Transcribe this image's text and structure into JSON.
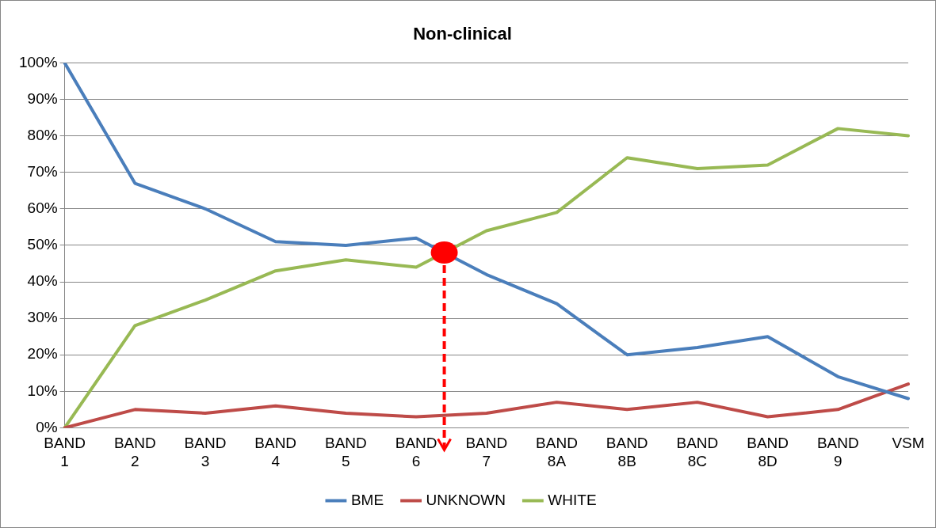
{
  "chart_data": {
    "type": "line",
    "title": "Non-clinical",
    "categories": [
      "BAND 1",
      "BAND 2",
      "BAND 3",
      "BAND 4",
      "BAND 5",
      "BAND 6",
      "BAND 7",
      "BAND 8A",
      "BAND 8B",
      "BAND 8C",
      "BAND 8D",
      "BAND 9",
      "VSM"
    ],
    "series": [
      {
        "name": "BME",
        "color": "#4a7ebb",
        "values": [
          100,
          67,
          60,
          51,
          50,
          52,
          42,
          34,
          20,
          22,
          25,
          14,
          8
        ]
      },
      {
        "name": "UNKNOWN",
        "color": "#be4b48",
        "values": [
          0,
          5,
          4,
          6,
          4,
          3,
          4,
          7,
          5,
          7,
          3,
          5,
          12
        ]
      },
      {
        "name": "WHITE",
        "color": "#98b954",
        "values": [
          0,
          28,
          35,
          43,
          46,
          44,
          54,
          59,
          74,
          71,
          72,
          82,
          80
        ]
      }
    ],
    "ylim": [
      0,
      100
    ],
    "yticks": [
      {
        "value": 0,
        "label": "0%"
      },
      {
        "value": 10,
        "label": "10%"
      },
      {
        "value": 20,
        "label": "20%"
      },
      {
        "value": 30,
        "label": "30%"
      },
      {
        "value": 40,
        "label": "40%"
      },
      {
        "value": 50,
        "label": "50%"
      },
      {
        "value": 60,
        "label": "60%"
      },
      {
        "value": 70,
        "label": "70%"
      },
      {
        "value": 80,
        "label": "80%"
      },
      {
        "value": 90,
        "label": "90%"
      },
      {
        "value": 100,
        "label": "100%"
      }
    ],
    "grid": "y",
    "legend": "bottom",
    "marker": "none",
    "line_style": "solid"
  }
}
